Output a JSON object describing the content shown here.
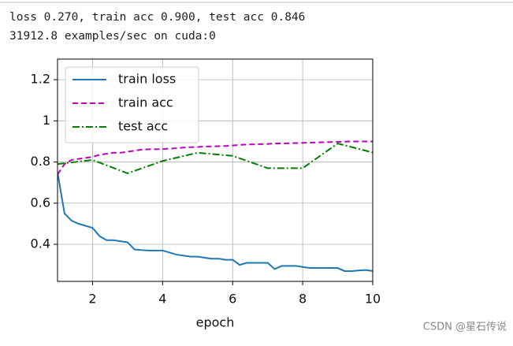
{
  "console": [
    "loss 0.270, train acc 0.900, test acc 0.846",
    "31912.8 examples/sec on cuda:0"
  ],
  "watermark": "CSDN @星石传说",
  "chart_data": {
    "type": "line",
    "xlabel": "epoch",
    "xlim": [
      1,
      10
    ],
    "xticks": [
      2,
      4,
      6,
      8,
      10
    ],
    "ylim": [
      0.22,
      1.3
    ],
    "yticks": [
      0.4,
      0.6,
      0.8,
      1.0,
      1.2
    ],
    "grid": true,
    "legend": "upper left",
    "series": [
      {
        "name": "train loss",
        "color": "#1f77b4",
        "style": "solid",
        "x": [
          1.0,
          1.2,
          1.4,
          1.6,
          1.8,
          2.0,
          2.2,
          2.4,
          2.6,
          2.8,
          3.0,
          3.2,
          3.4,
          3.6,
          3.8,
          4.0,
          4.2,
          4.4,
          4.6,
          4.8,
          5.0,
          5.2,
          5.4,
          5.6,
          5.8,
          6.0,
          6.2,
          6.4,
          6.6,
          6.8,
          7.0,
          7.2,
          7.4,
          7.6,
          7.8,
          8.0,
          8.2,
          8.4,
          8.6,
          8.8,
          9.0,
          9.2,
          9.4,
          9.6,
          9.8,
          10.0
        ],
        "values": [
          0.75,
          0.55,
          0.515,
          0.5,
          0.49,
          0.48,
          0.44,
          0.42,
          0.42,
          0.415,
          0.41,
          0.375,
          0.372,
          0.37,
          0.37,
          0.37,
          0.36,
          0.35,
          0.345,
          0.34,
          0.34,
          0.335,
          0.33,
          0.33,
          0.325,
          0.325,
          0.3,
          0.31,
          0.31,
          0.31,
          0.31,
          0.28,
          0.295,
          0.295,
          0.295,
          0.29,
          0.285,
          0.285,
          0.285,
          0.285,
          0.285,
          0.27,
          0.27,
          0.273,
          0.275,
          0.27
        ]
      },
      {
        "name": "train acc",
        "color": "#bf00bf",
        "style": "dashed",
        "x": [
          1.0,
          1.2,
          1.4,
          1.6,
          1.8,
          2.0,
          2.2,
          2.4,
          2.6,
          2.8,
          3.0,
          3.2,
          3.4,
          3.6,
          3.8,
          4.0,
          4.2,
          4.4,
          4.6,
          4.8,
          5.0,
          5.2,
          5.4,
          5.6,
          5.8,
          6.0,
          6.2,
          6.4,
          6.6,
          6.8,
          7.0,
          7.2,
          7.4,
          7.6,
          7.8,
          8.0,
          8.2,
          8.4,
          8.6,
          8.8,
          9.0,
          9.2,
          9.4,
          9.6,
          9.8,
          10.0
        ],
        "values": [
          0.74,
          0.79,
          0.81,
          0.815,
          0.82,
          0.825,
          0.835,
          0.84,
          0.845,
          0.845,
          0.85,
          0.855,
          0.86,
          0.862,
          0.862,
          0.863,
          0.865,
          0.867,
          0.87,
          0.872,
          0.873,
          0.875,
          0.876,
          0.877,
          0.878,
          0.88,
          0.883,
          0.885,
          0.886,
          0.887,
          0.888,
          0.89,
          0.89,
          0.891,
          0.892,
          0.893,
          0.894,
          0.895,
          0.896,
          0.897,
          0.898,
          0.899,
          0.9,
          0.9,
          0.9,
          0.9
        ]
      },
      {
        "name": "test acc",
        "color": "#008000",
        "style": "dashdot",
        "x": [
          1,
          2,
          3,
          4,
          5,
          6,
          7,
          8,
          9,
          10
        ],
        "values": [
          0.79,
          0.81,
          0.745,
          0.805,
          0.845,
          0.83,
          0.77,
          0.77,
          0.89,
          0.846
        ]
      }
    ]
  }
}
